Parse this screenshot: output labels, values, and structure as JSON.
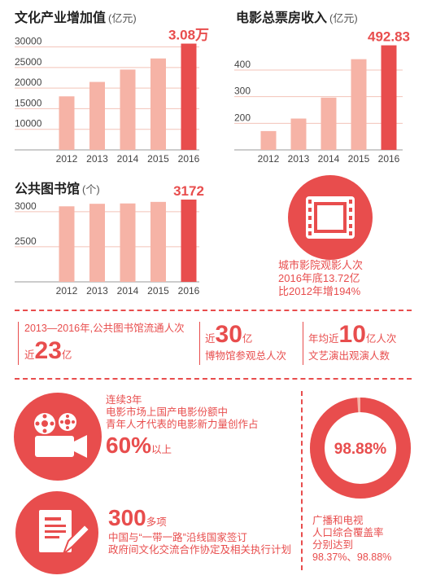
{
  "colors": {
    "accent": "#e84d4d",
    "bar_light": "#f6b3a6",
    "grid": "#f3c3b8",
    "axis_text": "#444444"
  },
  "chart_data": [
    {
      "type": "bar",
      "title": "文化产业增加值",
      "unit": "(亿元)",
      "categories": [
        "2012",
        "2013",
        "2014",
        "2015",
        "2016"
      ],
      "values": [
        18000,
        21500,
        24500,
        27200,
        30800
      ],
      "yticks": [
        "30000",
        "25000",
        "20000",
        "15000",
        "10000"
      ],
      "ytick_values": [
        30000,
        25000,
        20000,
        15000,
        10000
      ],
      "ylim": [
        5000,
        31500
      ],
      "highlight_label": "3.08万",
      "grid": true
    },
    {
      "type": "bar",
      "title": "电影总票房收入",
      "unit": "(亿元)",
      "categories": [
        "2012",
        "2013",
        "2014",
        "2015",
        "2016"
      ],
      "values": [
        170.7,
        217.7,
        296.4,
        440.7,
        492.83
      ],
      "yticks": [
        "400",
        "300",
        "200"
      ],
      "ytick_values": [
        400,
        300,
        200
      ],
      "ylim": [
        100,
        510
      ],
      "highlight_label": "492.83",
      "grid": true
    },
    {
      "type": "bar",
      "title": "公共图书馆",
      "unit": "(个)",
      "categories": [
        "2012",
        "2013",
        "2014",
        "2015",
        "2016"
      ],
      "values": [
        3076,
        3112,
        3117,
        3139,
        3172
      ],
      "yticks": [
        "3000",
        "2500"
      ],
      "ytick_values": [
        3000,
        2500
      ],
      "ylim": [
        2000,
        3230
      ],
      "highlight_label": "3172",
      "grid": true
    },
    {
      "type": "pie",
      "values": [
        98.88,
        1.12
      ],
      "center_label": "98.88%"
    }
  ],
  "cinema": {
    "icon": "film-strip-icon",
    "lines": [
      "城市影院观影人次",
      "2016年底13.72亿",
      "比2012年增194%"
    ]
  },
  "stats": {
    "library": {
      "line1": "2013—2016年,公共图书馆流通人次",
      "prefix": "近",
      "number": "23",
      "suffix": "亿"
    },
    "museum": {
      "prefix": "近",
      "number": "30",
      "suffix": "亿",
      "caption": "博物馆参观总人次"
    },
    "performance": {
      "prefix": "年均近",
      "number": "10",
      "suffix": "亿人次",
      "caption": "文艺演出观演人数"
    }
  },
  "film_share": {
    "icon": "movie-projector-icon",
    "lines": [
      "连续3年",
      "电影市场上国产电影份额中",
      "青年人才代表的电影新力量创作占"
    ],
    "number": "60%",
    "suffix": "以上"
  },
  "agreements": {
    "icon": "document-pen-icon",
    "number": "300",
    "suffix": "多项",
    "lines": [
      "中国与“一带一路”沿线国家签订",
      "政府间文化交流合作协定及相关执行计划"
    ]
  },
  "broadcast": {
    "lines": [
      "广播和电视",
      "人口综合覆盖率",
      "分别达到",
      "98.37%、98.88%"
    ]
  }
}
